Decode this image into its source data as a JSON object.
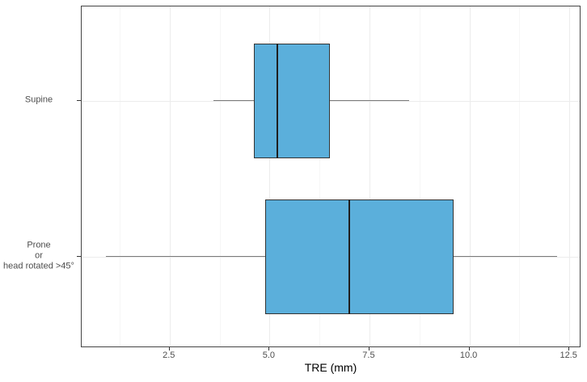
{
  "chart_data": {
    "type": "boxplot",
    "orientation": "horizontal",
    "title": "",
    "xlabel": "TRE (mm)",
    "ylabel": "",
    "xlim": [
      0.3,
      12.8
    ],
    "x_ticks": [
      2.5,
      5.0,
      7.5,
      10.0,
      12.5
    ],
    "x_tick_labels": [
      "2.5",
      "5.0",
      "7.5",
      "10.0",
      "12.5"
    ],
    "x_minor_ticks": [
      1.25,
      3.75,
      6.25,
      8.75,
      11.25
    ],
    "grid": "on",
    "legend": "none",
    "series": [
      {
        "name": "Supine",
        "label_lines": [
          "Supine"
        ],
        "whisker_min": 3.6,
        "q1": 4.6,
        "median": 5.2,
        "q3": 6.5,
        "whisker_max": 8.5
      },
      {
        "name": "Prone or head rotated >45°",
        "label_lines": [
          "Prone",
          "or",
          "head rotated >45°"
        ],
        "whisker_min": 0.9,
        "q1": 4.9,
        "median": 7.0,
        "q3": 9.6,
        "whisker_max": 12.2
      }
    ],
    "colors": {
      "box_fill": "#5BAFDB",
      "box_border": "#333333",
      "median": "#1f1f1f",
      "whisker": "#7a7a7a",
      "grid_major": "#ececec",
      "grid_minor": "#f6f6f6",
      "axis_text": "#4d4d4d",
      "axis_title": "#000000",
      "panel_border": "#444444"
    }
  }
}
